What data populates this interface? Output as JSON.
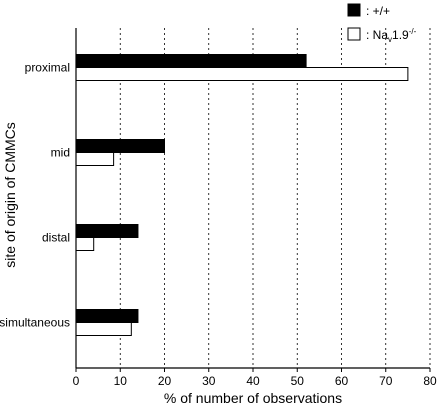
{
  "chart_data": {
    "type": "bar",
    "orientation": "horizontal",
    "categories": [
      "proximal",
      "mid",
      "distal",
      "simultaneous"
    ],
    "series": [
      {
        "name": ": +/+",
        "values": [
          52,
          20,
          14,
          14
        ],
        "color": "#000000"
      },
      {
        "name": ": Na",
        "name_subscript": "v",
        "name_suffix": "1.9",
        "name_superscript": "-/-",
        "values": [
          75,
          8.5,
          4,
          12.5
        ],
        "color": "#ffffff"
      }
    ],
    "xlabel": "% of number of observations",
    "ylabel": "site of origin of CMMCs",
    "xlim": [
      0,
      80
    ],
    "xticks": [
      "0",
      "10",
      "20",
      "30",
      "40",
      "50",
      "60",
      "70",
      "80"
    ],
    "grid": "vertical dotted lines",
    "legend_position": "top-right"
  }
}
